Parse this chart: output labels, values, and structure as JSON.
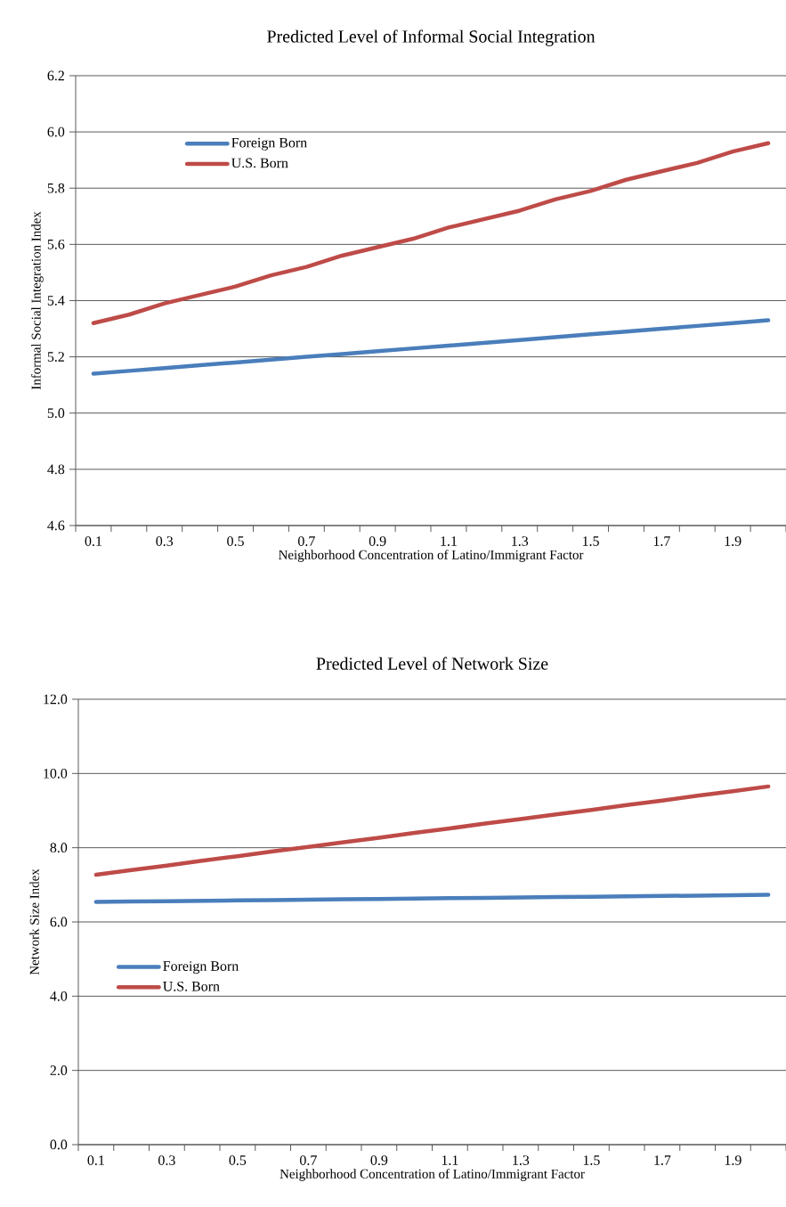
{
  "chart_data": [
    {
      "type": "line",
      "title": "Predicted Level of Informal Social Integration",
      "xlabel": "Neighborhood Concentration of Latino/Immigrant Factor",
      "ylabel": "Informal Social Integration Index",
      "categories": [
        "0.1",
        null,
        "0.3",
        null,
        "0.5",
        null,
        "0.7",
        null,
        "0.9",
        null,
        "1.1",
        null,
        "1.3",
        null,
        "1.5",
        null,
        "1.7",
        null,
        "1.9",
        null
      ],
      "series": [
        {
          "name": "Foreign Born",
          "color": "#4a7ebb",
          "values": [
            5.14,
            5.15,
            5.16,
            5.17,
            5.18,
            5.19,
            5.2,
            5.21,
            5.22,
            5.23,
            5.24,
            5.25,
            5.26,
            5.27,
            5.28,
            5.29,
            5.3,
            5.31,
            5.32,
            5.33
          ]
        },
        {
          "name": "U.S. Born",
          "color": "#be4b48",
          "values": [
            5.32,
            5.35,
            5.39,
            5.42,
            5.45,
            5.49,
            5.52,
            5.56,
            5.59,
            5.62,
            5.66,
            5.69,
            5.72,
            5.76,
            5.79,
            5.83,
            5.86,
            5.89,
            5.93,
            5.96
          ]
        }
      ],
      "ylim": [
        4.6,
        6.2
      ],
      "yticks": [
        {
          "value": 4.6,
          "label": "4.6"
        },
        {
          "value": 4.8,
          "label": "4.8"
        },
        {
          "value": 5.0,
          "label": "5.0"
        },
        {
          "value": 5.2,
          "label": "5.2"
        },
        {
          "value": 5.4,
          "label": "5.4"
        },
        {
          "value": 5.6,
          "label": "5.6"
        },
        {
          "value": 5.8,
          "label": "5.8"
        },
        {
          "value": 6.0,
          "label": "6.0"
        },
        {
          "value": 6.2,
          "label": "6.2"
        }
      ],
      "grid": "y",
      "legend": "top left",
      "marker": "none",
      "line_style": "solid"
    },
    {
      "type": "line",
      "title": "Predicted Level of Network Size",
      "xlabel": "Neighborhood Concentration of Latino/Immigrant Factor",
      "ylabel": "Network Size Index",
      "categories": [
        "0.1",
        null,
        "0.3",
        null,
        "0.5",
        null,
        "0.7",
        null,
        "0.9",
        null,
        "1.1",
        null,
        "1.3",
        null,
        "1.5",
        null,
        "1.7",
        null,
        "1.9",
        null
      ],
      "series": [
        {
          "name": "Foreign Born",
          "color": "#4a7ebb",
          "values": [
            6.54,
            6.55,
            6.56,
            6.57,
            6.58,
            6.59,
            6.6,
            6.61,
            6.62,
            6.63,
            6.64,
            6.65,
            6.66,
            6.67,
            6.68,
            6.69,
            6.7,
            6.71,
            6.72,
            6.73
          ]
        },
        {
          "name": "U.S. Born",
          "color": "#be4b48",
          "values": [
            7.27,
            7.4,
            7.52,
            7.65,
            7.77,
            7.9,
            8.02,
            8.15,
            8.27,
            8.4,
            8.52,
            8.65,
            8.77,
            8.9,
            9.02,
            9.15,
            9.27,
            9.4,
            9.52,
            9.65
          ]
        }
      ],
      "ylim": [
        0.0,
        12.0
      ],
      "yticks": [
        {
          "value": 0,
          "label": "0.0"
        },
        {
          "value": 2,
          "label": "2.0"
        },
        {
          "value": 4,
          "label": "4.0"
        },
        {
          "value": 6,
          "label": "6.0"
        },
        {
          "value": 8,
          "label": "8.0"
        },
        {
          "value": 10,
          "label": "10.0"
        },
        {
          "value": 12,
          "label": "12.0"
        }
      ],
      "grid": "y",
      "legend": "left",
      "marker": "none",
      "line_style": "solid"
    }
  ]
}
